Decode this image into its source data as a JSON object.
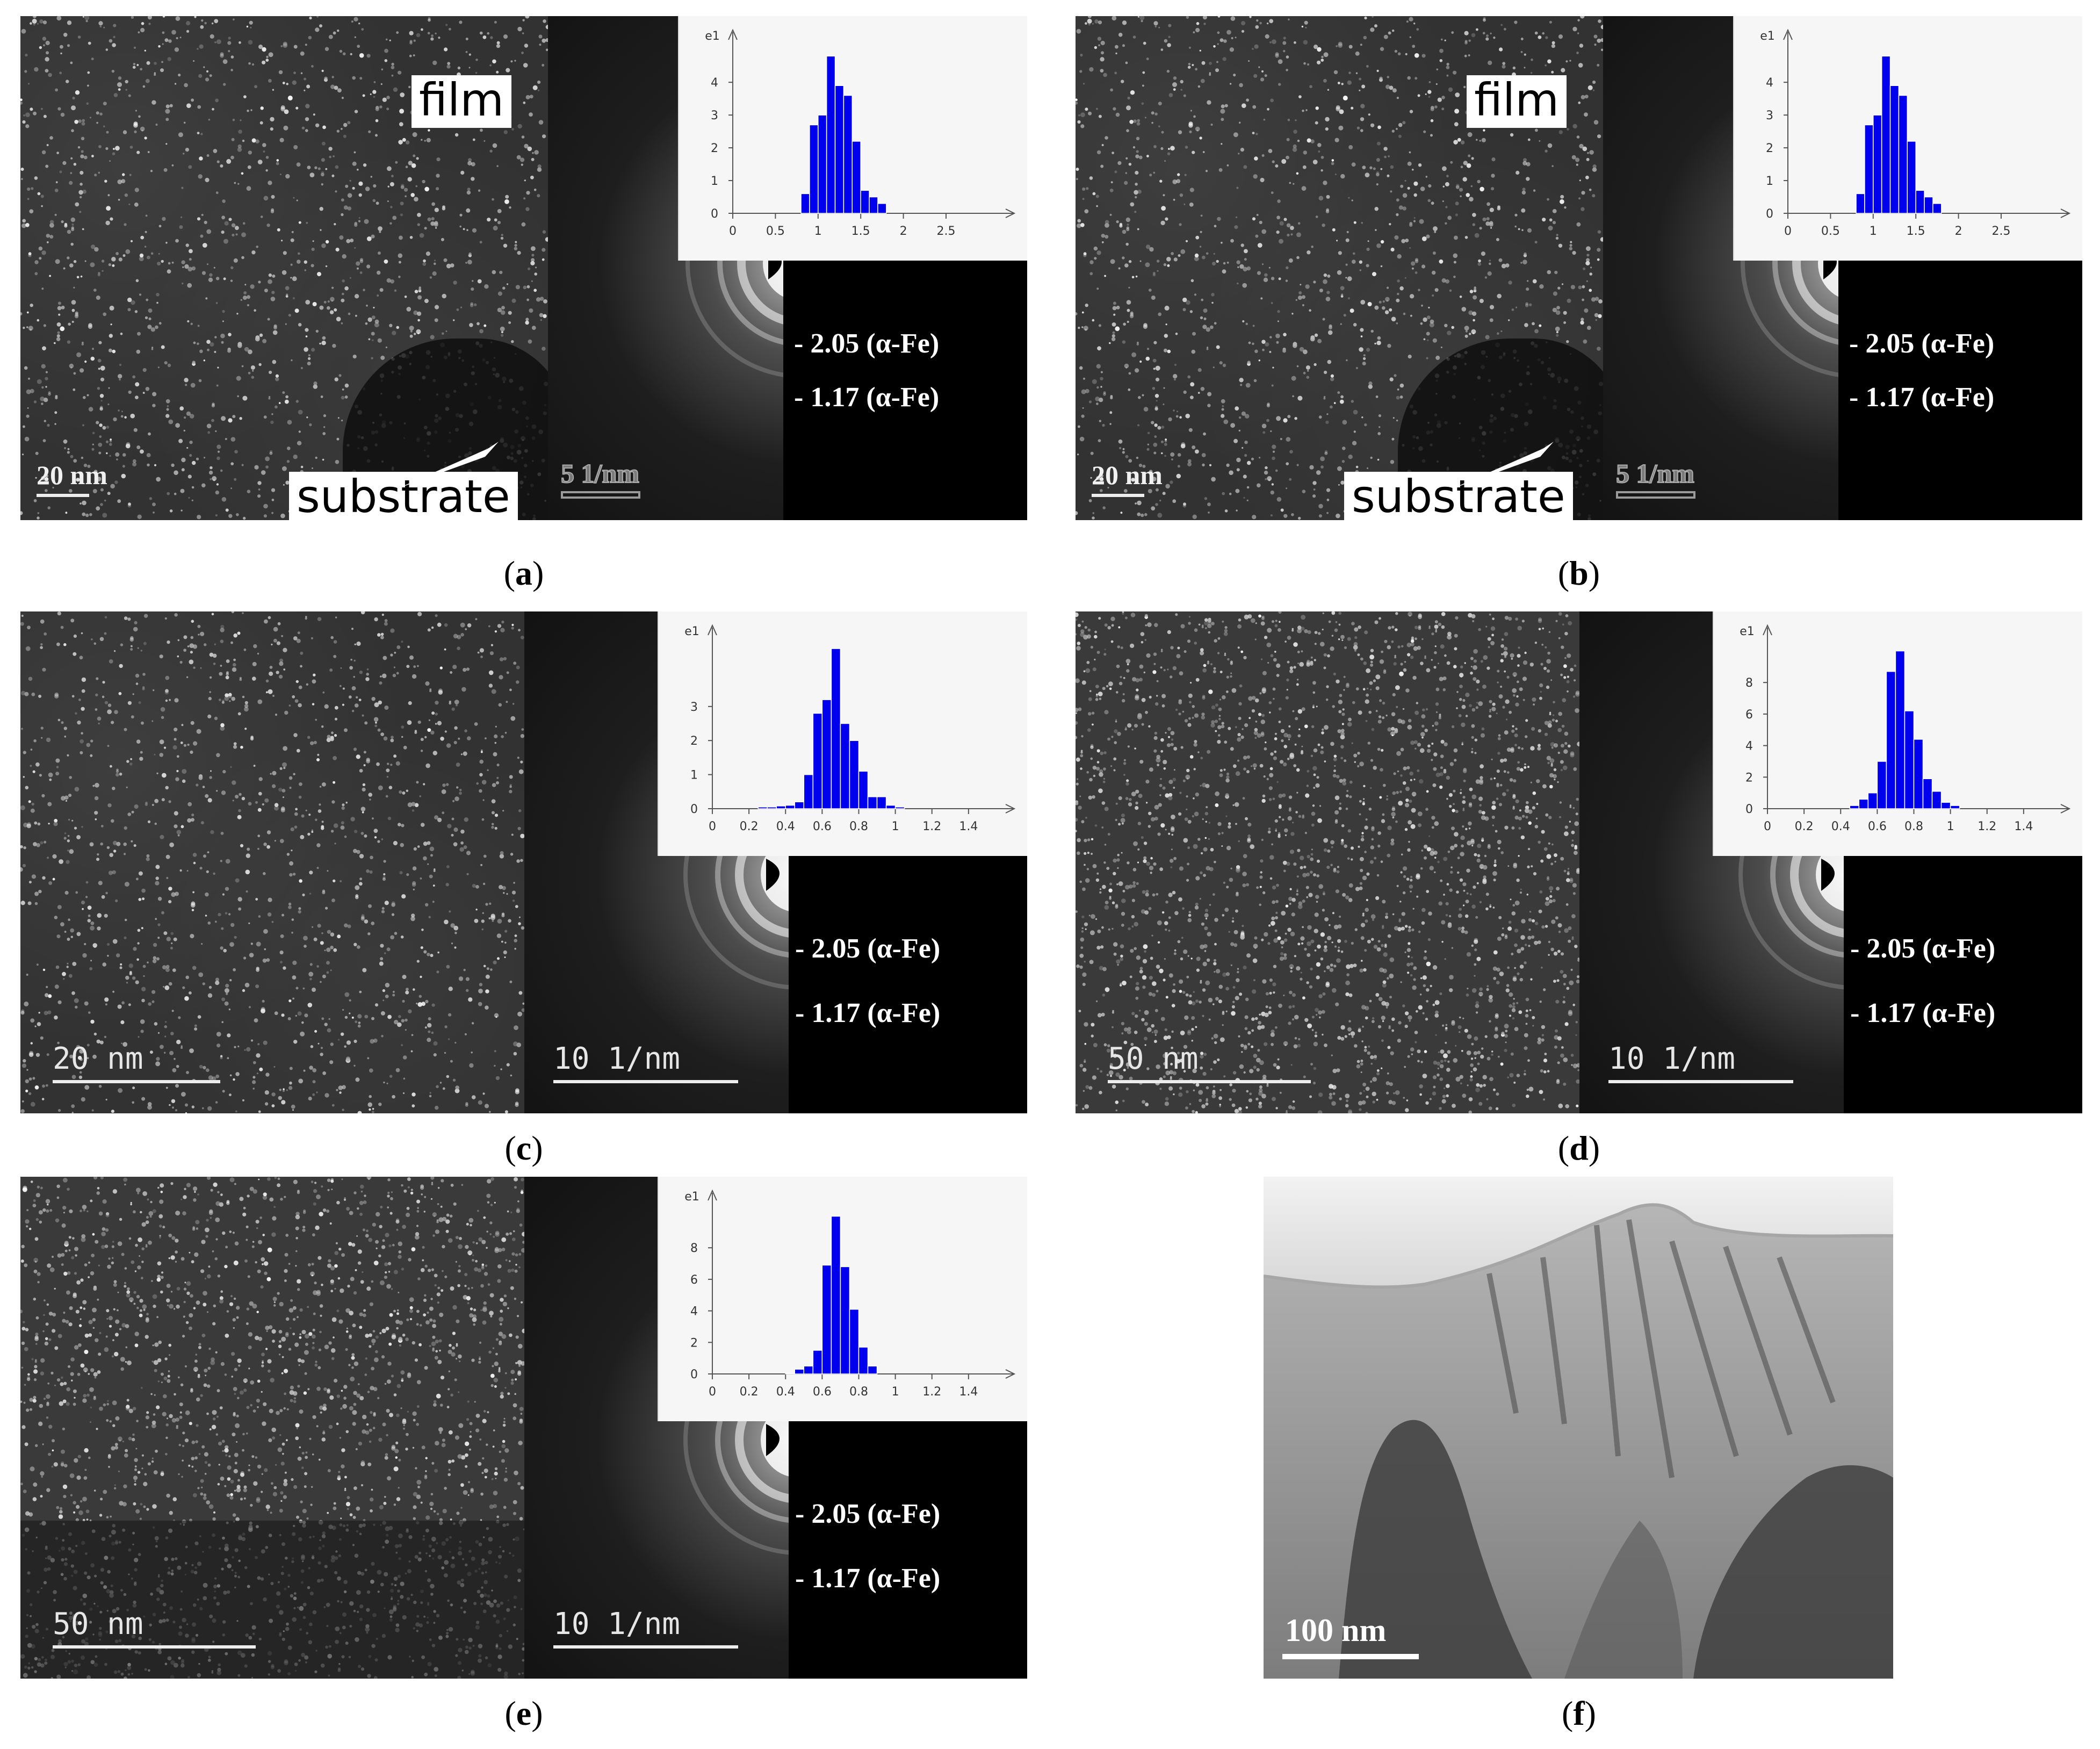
{
  "panels": {
    "a": {
      "caption_letter": "a",
      "film_label": "film",
      "substrate_label": "substrate",
      "image_scale": "20 nm",
      "saed_scale": "5 1/nm",
      "ring1": "- 2.05 (α-Fe)",
      "ring2": "- 1.17 (α-Fe)",
      "hist_ylabel": "e1",
      "hist_xticks": [
        "0",
        "0.5",
        "1",
        "1.5",
        "2",
        "2.5"
      ],
      "hist_yticks": [
        "0",
        "1",
        "2",
        "3",
        "4"
      ]
    },
    "b": {
      "caption_letter": "b",
      "film_label": "film",
      "substrate_label": "substrate",
      "image_scale": "20 nm",
      "saed_scale": "5 1/nm",
      "ring1": "- 2.05 (α-Fe)",
      "ring2": "- 1.17 (α-Fe)",
      "hist_ylabel": "e1",
      "hist_xticks": [
        "0",
        "0.5",
        "1",
        "1.5",
        "2",
        "2.5"
      ],
      "hist_yticks": [
        "0",
        "1",
        "2",
        "3",
        "4"
      ]
    },
    "c": {
      "caption_letter": "c",
      "image_scale": "20 nm",
      "saed_scale": "10 1/nm",
      "ring1": "- 2.05 (α-Fe)",
      "ring2": "- 1.17 (α-Fe)",
      "hist_ylabel": "e1",
      "hist_xticks": [
        "0",
        "0.2",
        "0.4",
        "0.6",
        "0.8",
        "1",
        "1.2",
        "1.4"
      ],
      "hist_yticks": [
        "0",
        "1",
        "2",
        "3"
      ]
    },
    "d": {
      "caption_letter": "d",
      "image_scale": "50 nm",
      "saed_scale": "10 1/nm",
      "ring1": "- 2.05 (α-Fe)",
      "ring2": "- 1.17 (α-Fe)",
      "hist_ylabel": "e1",
      "hist_xticks": [
        "0",
        "0.2",
        "0.4",
        "0.6",
        "0.8",
        "1",
        "1.2",
        "1.4"
      ],
      "hist_yticks": [
        "0",
        "2",
        "4",
        "6",
        "8"
      ]
    },
    "e": {
      "caption_letter": "e",
      "image_scale": "50 nm",
      "saed_scale": "10 1/nm",
      "ring1": "- 2.05 (α-Fe)",
      "ring2": "- 1.17 (α-Fe)",
      "hist_ylabel": "e1",
      "hist_xticks": [
        "0",
        "0.2",
        "0.4",
        "0.6",
        "0.8",
        "1",
        "1.2",
        "1.4"
      ],
      "hist_yticks": [
        "0",
        "2",
        "4",
        "6",
        "8"
      ]
    },
    "f": {
      "caption_letter": "f",
      "image_scale": "100 nm"
    }
  },
  "chart_data": [
    {
      "panel": "a",
      "type": "bar",
      "bar_color": "#0000ee",
      "bin_width": 0.1,
      "bin_centers": [
        0.85,
        0.95,
        1.05,
        1.15,
        1.25,
        1.35,
        1.45,
        1.55,
        1.65,
        1.75,
        1.85
      ],
      "values": [
        0.6,
        2.7,
        3.0,
        4.8,
        3.9,
        3.6,
        2.2,
        0.7,
        0.5,
        0.3,
        0.0
      ],
      "xlim": [
        0,
        3.3
      ],
      "ylim": [
        0,
        5.2
      ]
    },
    {
      "panel": "b",
      "type": "bar",
      "bar_color": "#0000ee",
      "bin_width": 0.1,
      "bin_centers": [
        0.85,
        0.95,
        1.05,
        1.15,
        1.25,
        1.35,
        1.45,
        1.55,
        1.65,
        1.75,
        1.85
      ],
      "values": [
        0.6,
        2.7,
        3.0,
        4.8,
        3.9,
        3.6,
        2.2,
        0.7,
        0.5,
        0.3,
        0.0
      ],
      "xlim": [
        0,
        3.3
      ],
      "ylim": [
        0,
        5.2
      ]
    },
    {
      "panel": "c",
      "type": "bar",
      "bar_color": "#0000ee",
      "bin_width": 0.05,
      "bin_centers": [
        0.275,
        0.325,
        0.375,
        0.425,
        0.475,
        0.525,
        0.575,
        0.625,
        0.675,
        0.725,
        0.775,
        0.825,
        0.875,
        0.925,
        0.975,
        1.025,
        1.075
      ],
      "values": [
        0.05,
        0.05,
        0.08,
        0.1,
        0.2,
        1.0,
        2.8,
        3.2,
        4.7,
        2.5,
        2.0,
        1.1,
        0.35,
        0.35,
        0.1,
        0.05,
        0.0
      ],
      "xlim": [
        0,
        1.65
      ],
      "ylim": [
        0,
        5.0
      ]
    },
    {
      "panel": "d",
      "type": "bar",
      "bar_color": "#0000ee",
      "bin_width": 0.05,
      "bin_centers": [
        0.475,
        0.525,
        0.575,
        0.625,
        0.675,
        0.725,
        0.775,
        0.825,
        0.875,
        0.925,
        0.975,
        1.025,
        1.075
      ],
      "values": [
        0.2,
        0.6,
        1.0,
        3.0,
        8.7,
        10.0,
        6.2,
        4.4,
        1.9,
        1.1,
        0.4,
        0.2,
        0.0
      ],
      "xlim": [
        0,
        1.65
      ],
      "ylim": [
        0,
        10.8
      ]
    },
    {
      "panel": "e",
      "type": "bar",
      "bar_color": "#0000ee",
      "bin_width": 0.05,
      "bin_centers": [
        0.425,
        0.475,
        0.525,
        0.575,
        0.625,
        0.675,
        0.725,
        0.775,
        0.825,
        0.875,
        0.925
      ],
      "values": [
        0.05,
        0.3,
        0.5,
        1.5,
        6.9,
        10.0,
        6.8,
        4.1,
        1.7,
        0.5,
        0.0
      ],
      "xlim": [
        0,
        1.65
      ],
      "ylim": [
        0,
        10.8
      ]
    }
  ]
}
